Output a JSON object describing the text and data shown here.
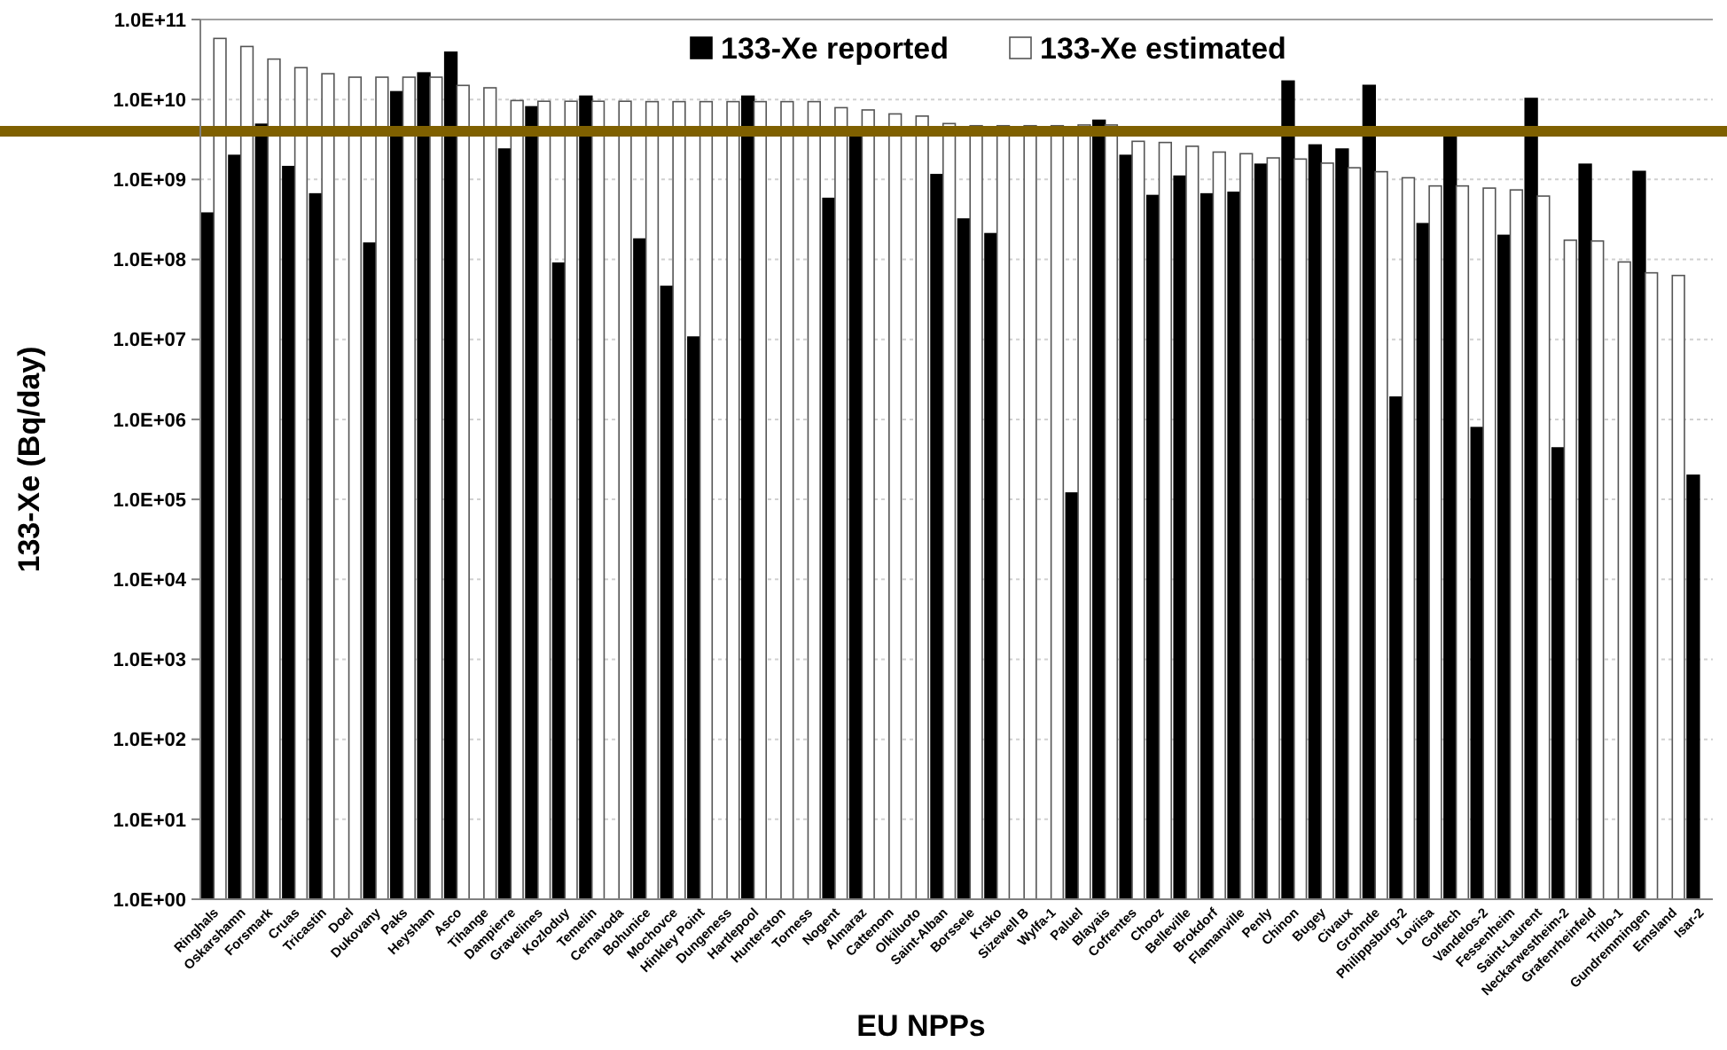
{
  "chart_data": {
    "type": "bar",
    "xlabel": "EU NPPs",
    "ylabel": "133-Xe (Bq/day)",
    "log": "y",
    "grid": "y",
    "legend": "top",
    "categories": [
      "Ringhals",
      "Oskarshamn",
      "Forsmark",
      "Cruas",
      "Tricastin",
      "Doel",
      "Dukovany",
      "Paks",
      "Heysham",
      "Asco",
      "Tihange",
      "Dampierre",
      "Gravelines",
      "Kozloduy",
      "Temelin",
      "Cernavoda",
      "Bohunice",
      "Mochovce",
      "Hinkley Point",
      "Dungeness",
      "Hartlepool",
      "Hunterston",
      "Torness",
      "Nogent",
      "Almaraz",
      "Cattenom",
      "Olkiluoto",
      "Saint-Alban",
      "Borssele",
      "Krsko",
      "Sizewell B",
      "Wylfa-1",
      "Paluel",
      "Blayais",
      "Cofrentes",
      "Chooz",
      "Belleville",
      "Brokdorf",
      "Flamanville",
      "Penly",
      "Chinon",
      "Bugey",
      "Civaux",
      "Grohnde",
      "Philippsburg-2",
      "Loviisa",
      "Golfech",
      "Vandelos-2",
      "Fessenheim",
      "Saint-Laurent",
      "Neckarwestheim-2",
      "Grafenrheinfeld",
      "Trillo-1",
      "Gundremmingen",
      "Emsland",
      "Isar-2"
    ],
    "series": [
      {
        "name": "133-Xe reported",
        "color": "#000000",
        "values": [
          380000000,
          2000000000,
          4900000000,
          1450000000,
          660000000,
          null,
          160000000,
          12500000000,
          21500000000,
          39000000000,
          null,
          2400000000,
          8100000000,
          90000000,
          11000000000,
          null,
          180000000,
          46000000,
          10700000,
          null,
          11000000000,
          null,
          null,
          580000000,
          3500000000,
          null,
          null,
          1150000000,
          320000000,
          210000000,
          null,
          null,
          120000,
          5500000000,
          2000000000,
          630000000,
          1100000000,
          660000000,
          690000000,
          1550000000,
          17000000000,
          2700000000,
          2400000000,
          15000000000,
          1900000,
          280000000,
          3800000000,
          790000,
          200000000,
          10300000000,
          440000,
          1550000000,
          null,
          1260000000,
          null,
          200000
        ]
      },
      {
        "name": "133-Xe estimated",
        "color": "#ffffff",
        "values": [
          58000000000,
          46000000000,
          32000000000,
          25000000000,
          21000000000,
          19000000000,
          19000000000,
          19000000000,
          19000000000,
          15000000000,
          14000000000,
          9700000000,
          9500000000,
          9500000000,
          9500000000,
          9500000000,
          9400000000,
          9400000000,
          9400000000,
          9400000000,
          9400000000,
          9400000000,
          9400000000,
          7900000000,
          7400000000,
          6600000000,
          6200000000,
          5000000000,
          4700000000,
          4700000000,
          4700000000,
          4700000000,
          4800000000,
          4800000000,
          3000000000,
          2900000000,
          2600000000,
          2200000000,
          2100000000,
          1860000000,
          1800000000,
          1600000000,
          1400000000,
          1250000000,
          1050000000,
          830000000,
          830000000,
          780000000,
          740000000,
          620000000,
          174000000,
          170000000,
          93000000,
          68000000,
          63000000,
          null
        ]
      }
    ],
    "ylim": [
      1,
      100000000000
    ],
    "yticks": [
      {
        "value": 1,
        "label": "1.0E+00"
      },
      {
        "value": 10,
        "label": "1.0E+01"
      },
      {
        "value": 100,
        "label": "1.0E+02"
      },
      {
        "value": 1000,
        "label": "1.0E+03"
      },
      {
        "value": 10000,
        "label": "1.0E+04"
      },
      {
        "value": 100000,
        "label": "1.0E+05"
      },
      {
        "value": 1000000,
        "label": "1.0E+06"
      },
      {
        "value": 10000000,
        "label": "1.0E+07"
      },
      {
        "value": 100000000,
        "label": "1.0E+08"
      },
      {
        "value": 1000000000,
        "label": "1.0E+09"
      },
      {
        "value": 10000000000,
        "label": "1.0E+10"
      },
      {
        "value": 100000000000,
        "label": "1.0E+11"
      }
    ],
    "ref_lines": [
      {
        "axis": "y",
        "value": 4000000000,
        "color": "#7f6000"
      }
    ]
  }
}
